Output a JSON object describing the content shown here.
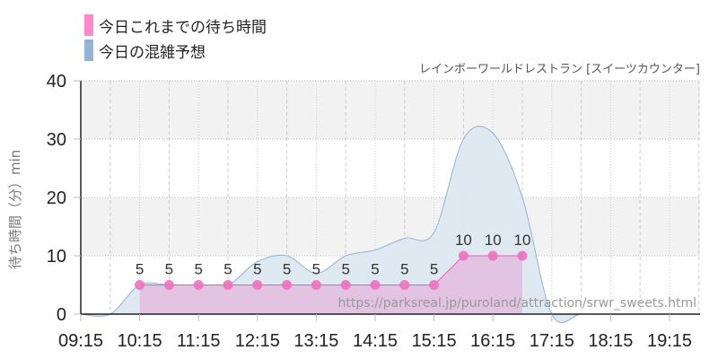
{
  "legend": {
    "items": [
      {
        "label": "今日これまでの待ち時間",
        "color": "#ff88cc"
      },
      {
        "label": "今日の混雑予想",
        "color": "#93b4d4"
      }
    ]
  },
  "subtitle": "レインボーワールドレストラン [スイーツカウンター]",
  "watermark": "https://parksreal.jp/puroland/attraction/srwr_sweets.html",
  "colors": {
    "actual_line": "#e060b0",
    "actual_fill": "#e2bfe0",
    "actual_point": "#f070c0",
    "forecast_line": "#93b4d4",
    "forecast_fill": "#dde8f1",
    "band": "#f2f2f2",
    "axis": "#222222"
  },
  "chart_data": {
    "type": "area",
    "title": "",
    "subtitle": "レインボーワールドレストラン [スイーツカウンター]",
    "xlabel": "",
    "ylabel": "待ち時間（分）min",
    "ylim": [
      0,
      40
    ],
    "yticks": [
      0,
      10,
      20,
      30,
      40
    ],
    "xticks": [
      "09:15",
      "10:15",
      "11:15",
      "12:15",
      "13:15",
      "14:15",
      "15:15",
      "16:15",
      "17:15",
      "18:15",
      "19:15"
    ],
    "grid": true,
    "legend_position": "top-left",
    "series": [
      {
        "name": "今日これまでの待ち時間",
        "type": "line+area+markers",
        "x": [
          "10:15",
          "10:45",
          "11:15",
          "11:45",
          "12:15",
          "12:45",
          "13:15",
          "13:45",
          "14:15",
          "14:45",
          "15:15",
          "15:45",
          "16:15",
          "16:45"
        ],
        "values": [
          5,
          5,
          5,
          5,
          5,
          5,
          5,
          5,
          5,
          5,
          5,
          10,
          10,
          10
        ],
        "labels": [
          "5",
          "5",
          "5",
          "5",
          "5",
          "5",
          "5",
          "5",
          "5",
          "5",
          "5",
          "10",
          "10",
          "10"
        ]
      },
      {
        "name": "今日の混雑予想",
        "type": "area",
        "x": [
          "09:15",
          "09:45",
          "10:15",
          "10:45",
          "11:15",
          "11:45",
          "12:15",
          "12:45",
          "13:15",
          "13:45",
          "14:15",
          "14:45",
          "15:15",
          "15:45",
          "16:15",
          "16:45",
          "17:15",
          "17:45",
          "18:15",
          "18:45",
          "19:15",
          "19:45"
        ],
        "values": [
          0,
          0,
          5,
          5,
          5,
          5,
          9,
          10,
          7,
          10,
          11,
          13,
          14,
          30,
          31,
          20,
          0,
          0,
          0,
          0,
          0,
          0
        ]
      }
    ]
  }
}
